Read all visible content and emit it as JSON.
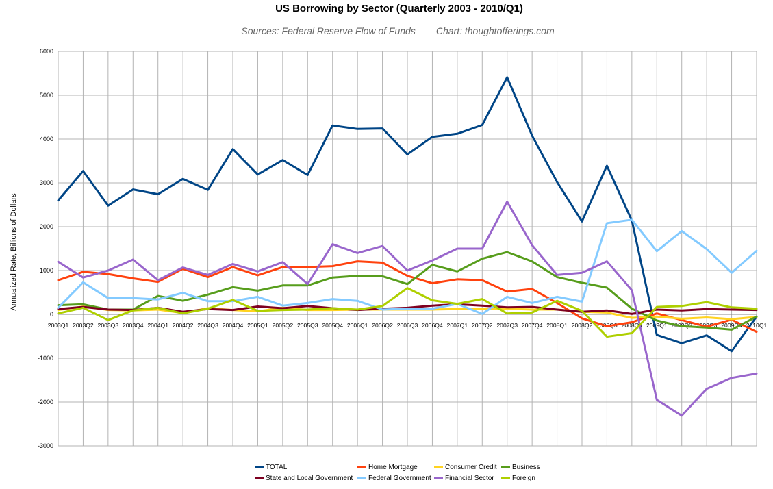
{
  "chart_data": {
    "type": "line",
    "title": "US Borrowing by Sector (Quarterly 2003 - 2010/Q1)",
    "subtitle_source": "Sources: Federal Reserve Flow of Funds",
    "subtitle_credit": "Chart: thoughtofferings.com",
    "ylabel": "Annualized Rate, Billions of Dollars",
    "xlabel": "",
    "ylim": [
      -3000,
      6000
    ],
    "yticks": [
      -3000,
      -2000,
      -1000,
      0,
      1000,
      2000,
      3000,
      4000,
      5000,
      6000
    ],
    "grid": true,
    "legend_position": "bottom",
    "categories": [
      "2003Q1",
      "2003Q2",
      "2003Q3",
      "2003Q4",
      "2004Q1",
      "2004Q2",
      "2004Q3",
      "2004Q4",
      "2005Q1",
      "2005Q2",
      "2005Q3",
      "2005Q4",
      "2006Q1",
      "2006Q2",
      "2006Q3",
      "2006Q4",
      "2007Q1",
      "2007Q2",
      "2007Q3",
      "2007Q4",
      "2008Q1",
      "2008Q2",
      "2008Q3",
      "2008Q4",
      "2009Q1",
      "2009Q2",
      "2009Q3",
      "2009Q4",
      "2010Q1"
    ],
    "series": [
      {
        "name": "TOTAL",
        "color": "#004586",
        "values": [
          2600,
          3270,
          2480,
          2850,
          2740,
          3090,
          2840,
          3770,
          3190,
          3520,
          3180,
          4310,
          4230,
          4240,
          3650,
          4050,
          4120,
          4320,
          5410,
          4080,
          3020,
          2120,
          3390,
          2140,
          -470,
          -660,
          -480,
          -840,
          -50
        ]
      },
      {
        "name": "Home Mortgage",
        "color": "#ff420e",
        "values": [
          780,
          970,
          920,
          820,
          740,
          1040,
          850,
          1080,
          890,
          1080,
          1080,
          1100,
          1210,
          1180,
          880,
          710,
          800,
          780,
          520,
          580,
          260,
          -90,
          -270,
          -180,
          20,
          -130,
          -280,
          -120,
          -400
        ]
      },
      {
        "name": "Consumer Credit",
        "color": "#ffd320",
        "values": [
          100,
          180,
          100,
          90,
          110,
          30,
          140,
          100,
          70,
          150,
          100,
          100,
          110,
          110,
          110,
          110,
          120,
          130,
          130,
          110,
          110,
          60,
          40,
          -80,
          -50,
          -100,
          -70,
          -110,
          -60
        ]
      },
      {
        "name": "Business",
        "color": "#579d1c",
        "values": [
          210,
          230,
          110,
          110,
          420,
          310,
          450,
          620,
          540,
          660,
          660,
          840,
          880,
          870,
          690,
          1130,
          980,
          1270,
          1420,
          1210,
          850,
          720,
          610,
          130,
          -140,
          -270,
          -300,
          -350,
          -50
        ]
      },
      {
        "name": "State and Local Government",
        "color": "#7e0021",
        "values": [
          120,
          170,
          110,
          100,
          150,
          60,
          120,
          100,
          180,
          140,
          190,
          140,
          100,
          130,
          150,
          200,
          230,
          200,
          160,
          170,
          110,
          60,
          90,
          10,
          110,
          90,
          120,
          110,
          100
        ]
      },
      {
        "name": "Federal Government",
        "color": "#83caff",
        "values": [
          150,
          730,
          370,
          370,
          340,
          490,
          300,
          300,
          400,
          200,
          260,
          350,
          310,
          110,
          130,
          130,
          240,
          10,
          400,
          260,
          400,
          290,
          2080,
          2160,
          1440,
          1900,
          1490,
          950,
          1450
        ]
      },
      {
        "name": "Financial Sector",
        "color": "#9966cc",
        "values": [
          1200,
          840,
          1000,
          1250,
          780,
          1070,
          900,
          1150,
          980,
          1190,
          690,
          1600,
          1400,
          1560,
          1000,
          1230,
          1500,
          1500,
          2570,
          1580,
          900,
          950,
          1210,
          550,
          -1950,
          -2310,
          -1700,
          -1450,
          -1350
        ]
      },
      {
        "name": "Foreign",
        "color": "#aecf00",
        "values": [
          20,
          150,
          -130,
          90,
          150,
          20,
          130,
          330,
          80,
          100,
          110,
          140,
          110,
          190,
          600,
          320,
          240,
          350,
          20,
          40,
          310,
          80,
          -510,
          -430,
          170,
          190,
          280,
          160,
          130
        ]
      }
    ]
  }
}
